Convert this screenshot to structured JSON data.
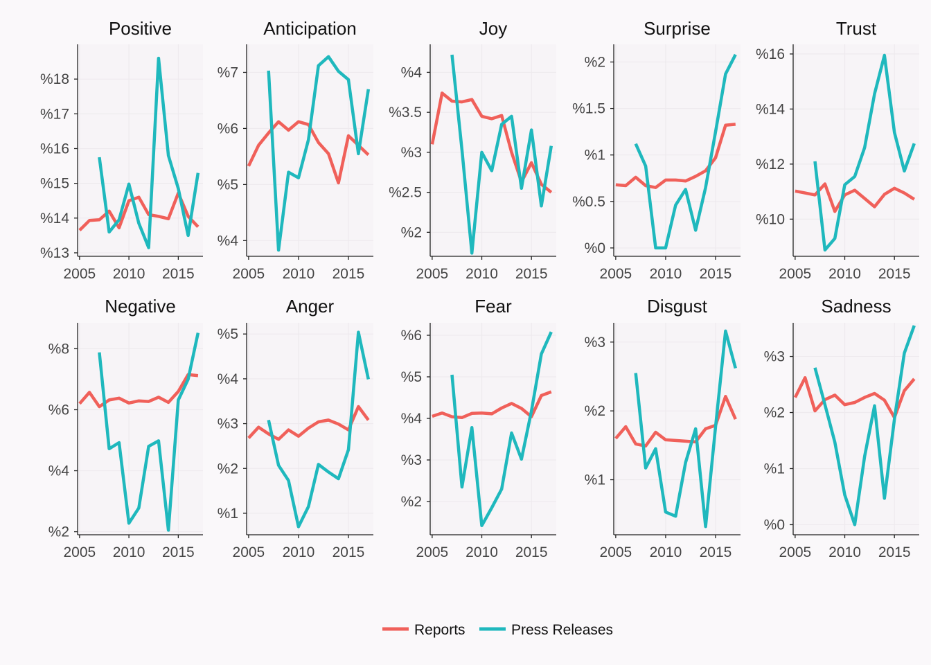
{
  "colors": {
    "reports": "#f0605a",
    "press": "#1fb8bd"
  },
  "legend": [
    {
      "key": "reports",
      "label": "Reports"
    },
    {
      "key": "press",
      "label": "Press Releases"
    }
  ],
  "chart_data": [
    {
      "type": "line",
      "title": "Positive",
      "xlim": [
        2004.8,
        2017.5
      ],
      "xticks": [
        2005,
        2010,
        2015
      ],
      "ylim": [
        12.9,
        19.0
      ],
      "yticks": [
        13,
        14,
        15,
        16,
        17,
        18
      ],
      "ytick_labels": [
        "%13",
        "%14",
        "%15",
        "%16",
        "%17",
        "%18"
      ],
      "series": [
        {
          "name": "Reports",
          "key": "reports",
          "x": [
            2005,
            2006,
            2007,
            2008,
            2009,
            2010,
            2011,
            2012,
            2013,
            2014,
            2015,
            2016,
            2017
          ],
          "y": [
            13.65,
            13.93,
            13.95,
            14.2,
            13.72,
            14.5,
            14.6,
            14.1,
            14.05,
            13.98,
            14.72,
            14.05,
            13.75
          ]
        },
        {
          "name": "Press Releases",
          "key": "press",
          "x": [
            2007,
            2008,
            2009,
            2010,
            2011,
            2012,
            2013,
            2014,
            2015,
            2016,
            2017
          ],
          "y": [
            15.75,
            13.6,
            13.95,
            14.98,
            13.85,
            13.15,
            18.6,
            15.8,
            14.85,
            13.5,
            15.3
          ]
        }
      ]
    },
    {
      "type": "line",
      "title": "Anticipation",
      "xlim": [
        2004.8,
        2017.5
      ],
      "xticks": [
        2005,
        2010,
        2015
      ],
      "ylim": [
        3.72,
        7.5
      ],
      "yticks": [
        4,
        5,
        6,
        7
      ],
      "ytick_labels": [
        "%4",
        "%5",
        "%6",
        "%7"
      ],
      "series": [
        {
          "name": "Reports",
          "key": "reports",
          "x": [
            2005,
            2006,
            2007,
            2008,
            2009,
            2010,
            2011,
            2012,
            2013,
            2014,
            2015,
            2016,
            2017
          ],
          "y": [
            5.33,
            5.7,
            5.92,
            6.12,
            5.97,
            6.12,
            6.07,
            5.75,
            5.55,
            5.03,
            5.87,
            5.7,
            5.53
          ]
        },
        {
          "name": "Press Releases",
          "key": "press",
          "x": [
            2007,
            2008,
            2009,
            2010,
            2011,
            2012,
            2013,
            2014,
            2015,
            2016,
            2017
          ],
          "y": [
            7.03,
            3.83,
            5.22,
            5.12,
            5.8,
            7.12,
            7.28,
            7.02,
            6.87,
            5.55,
            6.7
          ]
        }
      ]
    },
    {
      "type": "line",
      "title": "Joy",
      "xlim": [
        2004.8,
        2017.5
      ],
      "xticks": [
        2005,
        2010,
        2015
      ],
      "ylim": [
        1.7,
        4.35
      ],
      "yticks": [
        2,
        2.5,
        3,
        3.5,
        4
      ],
      "ytick_labels": [
        "%2",
        "%2.5",
        "%3",
        "%3.5",
        "%4"
      ],
      "series": [
        {
          "name": "Reports",
          "key": "reports",
          "x": [
            2005,
            2006,
            2007,
            2008,
            2009,
            2010,
            2011,
            2012,
            2013,
            2014,
            2015,
            2016,
            2017
          ],
          "y": [
            3.1,
            3.74,
            3.64,
            3.63,
            3.66,
            3.45,
            3.42,
            3.46,
            3.0,
            2.63,
            2.87,
            2.6,
            2.5
          ]
        },
        {
          "name": "Press Releases",
          "key": "press",
          "x": [
            2007,
            2008,
            2009,
            2010,
            2011,
            2012,
            2013,
            2014,
            2015,
            2016,
            2017
          ],
          "y": [
            4.22,
            3.03,
            1.74,
            3.0,
            2.77,
            3.35,
            3.45,
            2.55,
            3.28,
            2.33,
            3.08
          ]
        }
      ]
    },
    {
      "type": "line",
      "title": "Surprise",
      "xlim": [
        2004.8,
        2017.5
      ],
      "xticks": [
        2005,
        2010,
        2015
      ],
      "ylim": [
        -0.09,
        2.19
      ],
      "yticks": [
        0,
        0.5,
        1,
        1.5,
        2
      ],
      "ytick_labels": [
        "%0",
        "%0.5",
        "%1",
        "%1.5",
        "%2"
      ],
      "series": [
        {
          "name": "Reports",
          "key": "reports",
          "x": [
            2005,
            2006,
            2007,
            2008,
            2009,
            2010,
            2011,
            2012,
            2013,
            2014,
            2015,
            2016,
            2017
          ],
          "y": [
            0.68,
            0.67,
            0.76,
            0.67,
            0.65,
            0.73,
            0.73,
            0.72,
            0.77,
            0.83,
            0.97,
            1.32,
            1.33
          ]
        },
        {
          "name": "Press Releases",
          "key": "press",
          "x": [
            2007,
            2008,
            2009,
            2010,
            2011,
            2012,
            2013,
            2014,
            2015,
            2016,
            2017
          ],
          "y": [
            1.12,
            0.88,
            0.0,
            0.0,
            0.46,
            0.63,
            0.19,
            0.65,
            1.25,
            1.87,
            2.08
          ]
        }
      ]
    },
    {
      "type": "line",
      "title": "Trust",
      "xlim": [
        2004.8,
        2017.5
      ],
      "xticks": [
        2005,
        2010,
        2015
      ],
      "ylim": [
        8.65,
        16.35
      ],
      "yticks": [
        10,
        12,
        14,
        16
      ],
      "ytick_labels": [
        "%10",
        "%12",
        "%14",
        "%16"
      ],
      "series": [
        {
          "name": "Reports",
          "key": "reports",
          "x": [
            2005,
            2006,
            2007,
            2008,
            2009,
            2010,
            2011,
            2012,
            2013,
            2014,
            2015,
            2016,
            2017
          ],
          "y": [
            11.02,
            10.95,
            10.88,
            11.28,
            10.28,
            10.88,
            11.05,
            10.75,
            10.45,
            10.9,
            11.12,
            10.95,
            10.72
          ]
        },
        {
          "name": "Press Releases",
          "key": "press",
          "x": [
            2007,
            2008,
            2009,
            2010,
            2011,
            2012,
            2013,
            2014,
            2015,
            2016,
            2017
          ],
          "y": [
            12.1,
            8.88,
            9.3,
            11.25,
            11.55,
            12.6,
            14.55,
            15.95,
            13.15,
            11.75,
            12.75
          ]
        }
      ]
    },
    {
      "type": "line",
      "title": "Negative",
      "xlim": [
        2004.8,
        2017.5
      ],
      "xticks": [
        2005,
        2010,
        2015
      ],
      "ylim": [
        1.9,
        8.85
      ],
      "yticks": [
        2,
        4,
        6,
        8
      ],
      "ytick_labels": [
        "%2",
        "%4",
        "%6",
        "%8"
      ],
      "series": [
        {
          "name": "Reports",
          "key": "reports",
          "x": [
            2005,
            2006,
            2007,
            2008,
            2009,
            2010,
            2011,
            2012,
            2013,
            2014,
            2015,
            2016,
            2017
          ],
          "y": [
            6.2,
            6.57,
            6.1,
            6.32,
            6.38,
            6.22,
            6.29,
            6.27,
            6.41,
            6.24,
            6.6,
            7.15,
            7.12
          ]
        },
        {
          "name": "Press Releases",
          "key": "press",
          "x": [
            2007,
            2008,
            2009,
            2010,
            2011,
            2012,
            2013,
            2014,
            2015,
            2016,
            2017
          ],
          "y": [
            7.88,
            4.72,
            4.92,
            2.28,
            2.78,
            4.8,
            4.98,
            2.05,
            6.32,
            7.0,
            8.52
          ]
        }
      ]
    },
    {
      "type": "line",
      "title": "Anger",
      "xlim": [
        2004.8,
        2017.5
      ],
      "xticks": [
        2005,
        2010,
        2015
      ],
      "ylim": [
        0.52,
        5.25
      ],
      "yticks": [
        1,
        2,
        3,
        4,
        5
      ],
      "ytick_labels": [
        "%1",
        "%2",
        "%3",
        "%4",
        "%5"
      ],
      "series": [
        {
          "name": "Reports",
          "key": "reports",
          "x": [
            2005,
            2006,
            2007,
            2008,
            2009,
            2010,
            2011,
            2012,
            2013,
            2014,
            2015,
            2016,
            2017
          ],
          "y": [
            2.68,
            2.92,
            2.77,
            2.65,
            2.86,
            2.72,
            2.9,
            3.04,
            3.08,
            2.99,
            2.86,
            3.38,
            3.08
          ]
        },
        {
          "name": "Press Releases",
          "key": "press",
          "x": [
            2007,
            2008,
            2009,
            2010,
            2011,
            2012,
            2013,
            2014,
            2015,
            2016,
            2017
          ],
          "y": [
            3.08,
            2.07,
            1.73,
            0.7,
            1.15,
            2.09,
            1.92,
            1.77,
            2.42,
            5.04,
            3.99
          ]
        }
      ]
    },
    {
      "type": "line",
      "title": "Fear",
      "xlim": [
        2004.8,
        2017.5
      ],
      "xticks": [
        2005,
        2010,
        2015
      ],
      "ylim": [
        1.2,
        6.3
      ],
      "yticks": [
        2,
        3,
        4,
        5,
        6
      ],
      "ytick_labels": [
        "%2",
        "%3",
        "%4",
        "%5",
        "%6"
      ],
      "series": [
        {
          "name": "Reports",
          "key": "reports",
          "x": [
            2005,
            2006,
            2007,
            2008,
            2009,
            2010,
            2011,
            2012,
            2013,
            2014,
            2015,
            2016,
            2017
          ],
          "y": [
            4.05,
            4.13,
            4.04,
            4.02,
            4.12,
            4.13,
            4.11,
            4.25,
            4.36,
            4.24,
            4.04,
            4.55,
            4.64
          ]
        },
        {
          "name": "Press Releases",
          "key": "press",
          "x": [
            2007,
            2008,
            2009,
            2010,
            2011,
            2012,
            2013,
            2014,
            2015,
            2016,
            2017
          ],
          "y": [
            5.05,
            2.35,
            3.78,
            1.42,
            1.85,
            2.3,
            3.65,
            3.02,
            4.18,
            5.55,
            6.08
          ]
        }
      ]
    },
    {
      "type": "line",
      "title": "Disgust",
      "xlim": [
        2004.8,
        2017.5
      ],
      "xticks": [
        2005,
        2010,
        2015
      ],
      "ylim": [
        0.2,
        3.28
      ],
      "yticks": [
        1,
        2,
        3
      ],
      "ytick_labels": [
        "%1",
        "%2",
        "%3"
      ],
      "series": [
        {
          "name": "Reports",
          "key": "reports",
          "x": [
            2005,
            2006,
            2007,
            2008,
            2009,
            2010,
            2011,
            2012,
            2013,
            2014,
            2015,
            2016,
            2017
          ],
          "y": [
            1.6,
            1.77,
            1.52,
            1.49,
            1.69,
            1.58,
            1.57,
            1.56,
            1.55,
            1.74,
            1.79,
            2.21,
            1.88
          ]
        },
        {
          "name": "Press Releases",
          "key": "press",
          "x": [
            2007,
            2008,
            2009,
            2010,
            2011,
            2012,
            2013,
            2014,
            2015,
            2016,
            2017
          ],
          "y": [
            2.55,
            1.17,
            1.45,
            0.53,
            0.47,
            1.25,
            1.74,
            0.32,
            1.77,
            3.16,
            2.62
          ]
        }
      ]
    },
    {
      "type": "line",
      "title": "Sadness",
      "xlim": [
        2004.8,
        2017.5
      ],
      "xticks": [
        2005,
        2010,
        2015
      ],
      "ylim": [
        -0.18,
        3.6
      ],
      "yticks": [
        0,
        1,
        2,
        3
      ],
      "ytick_labels": [
        "%0",
        "%1",
        "%2",
        "%3"
      ],
      "series": [
        {
          "name": "Reports",
          "key": "reports",
          "x": [
            2005,
            2006,
            2007,
            2008,
            2009,
            2010,
            2011,
            2012,
            2013,
            2014,
            2015,
            2016,
            2017
          ],
          "y": [
            2.27,
            2.62,
            2.03,
            2.23,
            2.31,
            2.14,
            2.18,
            2.27,
            2.34,
            2.22,
            1.91,
            2.39,
            2.6
          ]
        },
        {
          "name": "Press Releases",
          "key": "press",
          "x": [
            2007,
            2008,
            2009,
            2010,
            2011,
            2012,
            2013,
            2014,
            2015,
            2016,
            2017
          ],
          "y": [
            2.8,
            2.14,
            1.47,
            0.53,
            0.0,
            1.22,
            2.12,
            0.47,
            1.88,
            3.06,
            3.55
          ]
        }
      ]
    }
  ]
}
